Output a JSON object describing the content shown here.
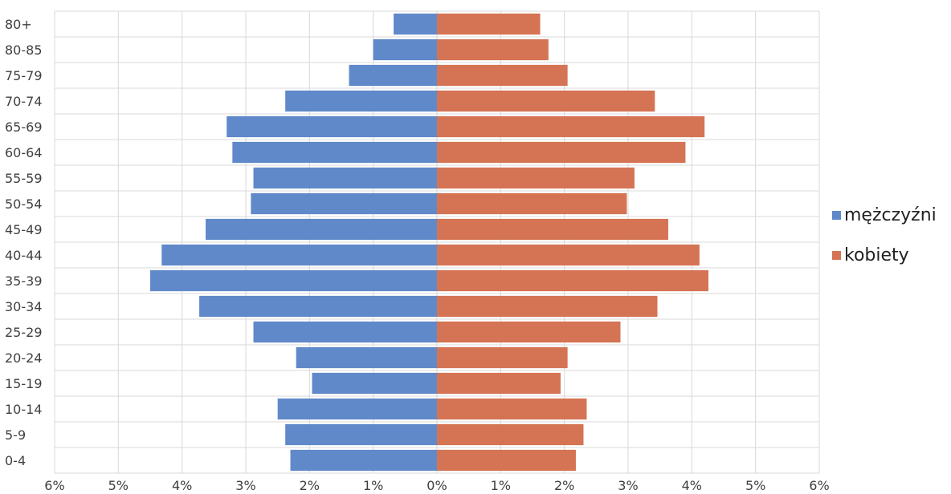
{
  "chart_data": {
    "type": "bar",
    "orientation": "horizontal",
    "layout": "population-pyramid",
    "categories": [
      "0-4",
      "5-9",
      "10-14",
      "15-19",
      "20-24",
      "25-29",
      "30-34",
      "35-39",
      "40-44",
      "45-49",
      "50-54",
      "55-59",
      "60-64",
      "65-69",
      "70-74",
      "75-79",
      "80-85",
      "80+"
    ],
    "series": [
      {
        "name": "mężczyźni",
        "color": "#6089c9",
        "values": [
          2.3,
          2.38,
          2.5,
          1.96,
          2.21,
          2.88,
          3.73,
          4.5,
          4.32,
          3.63,
          2.92,
          2.88,
          3.21,
          3.3,
          2.38,
          1.38,
          1.0,
          0.68
        ]
      },
      {
        "name": "kobiety",
        "color": "#d57454",
        "values": [
          2.18,
          2.3,
          2.35,
          1.94,
          2.05,
          2.88,
          3.46,
          4.26,
          4.12,
          3.63,
          2.98,
          3.1,
          3.9,
          4.2,
          3.42,
          2.05,
          1.75,
          1.62
        ]
      }
    ],
    "x_ticks": [
      "6%",
      "5%",
      "4%",
      "3%",
      "2%",
      "1%",
      "0%",
      "1%",
      "2%",
      "3%",
      "4%",
      "5%",
      "6%"
    ],
    "xlim": [
      -6,
      6
    ],
    "unit": "%",
    "grid": true,
    "legend_position": "right",
    "title": "",
    "xlabel": "",
    "ylabel": ""
  }
}
